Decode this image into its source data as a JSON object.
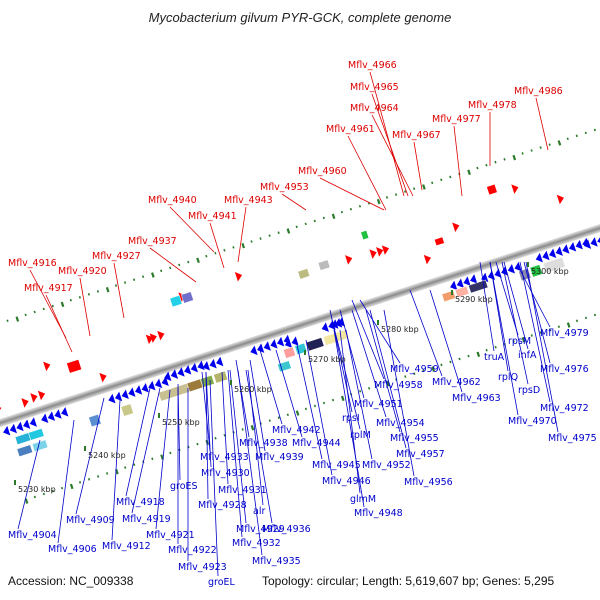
{
  "title": "Mycobacterium gilvum PYR-GCK, complete genome",
  "footer": {
    "accession": "Accession: NC_009338",
    "topology": "Topology: circular; Length: 5,619,607 bp; Genes: 5,295"
  },
  "ticks": [
    "5230 kbp",
    "5240 kbp",
    "5250 kbp",
    "5260 kbp",
    "5270 kbp",
    "5280 kbp",
    "5290 kbp",
    "5300 kbp"
  ],
  "red_labels": [
    "Mflv_4966",
    "Mflv_4965",
    "Mflv_4986",
    "Mflv_4964",
    "Mflv_4978",
    "Mflv_4977",
    "Mflv_4961",
    "Mflv_4967",
    "Mflv_4960",
    "Mflv_4953",
    "Mflv_4940",
    "Mflv_4943",
    "Mflv_4941",
    "Mflv_4937",
    "Mflv_4916",
    "Mflv_4927",
    "Mflv_4920",
    "Mflv_4917"
  ],
  "blue_labels": [
    "Mflv_4979",
    "rpsM",
    "truA",
    "infA",
    "Mflv_4976",
    "rplQ",
    "rpsD",
    "Mflv_4959",
    "Mflv_4962",
    "Mflv_4958",
    "Mflv_4963",
    "Mflv_4972",
    "Mflv_4970",
    "Mflv_4975",
    "Mflv_4951",
    "rpsI",
    "Mflv_4954",
    "rplM",
    "Mflv_4955",
    "Mflv_4942",
    "Mflv_4944",
    "Mflv_4938",
    "Mflv_4939",
    "Mflv_4957",
    "Mflv_4933",
    "Mflv_4945",
    "Mflv_4952",
    "Mflv_4930",
    "Mflv_4946",
    "Mflv_4956",
    "groES",
    "Mflv_4931",
    "glmM",
    "Mflv_4918",
    "Mflv_4928",
    "alr",
    "Mflv_4948",
    "Mflv_4909",
    "Mflv_4919",
    "Mflv_4936",
    "Mflv_4929",
    "Mflv_4904",
    "Mflv_4921",
    "Mflv_4906",
    "Mflv_4912",
    "Mflv_4932",
    "Mflv_4922",
    "Mflv_4935",
    "Mflv_4923",
    "groEL"
  ],
  "colors": {
    "red_label": "#dd0000",
    "blue_label": "#0000cc",
    "backbone": "#8a8a8a",
    "tick_dark": "#2a7a2a",
    "forward_gene": "#ff0000",
    "reverse_gene": "#0000ee"
  }
}
